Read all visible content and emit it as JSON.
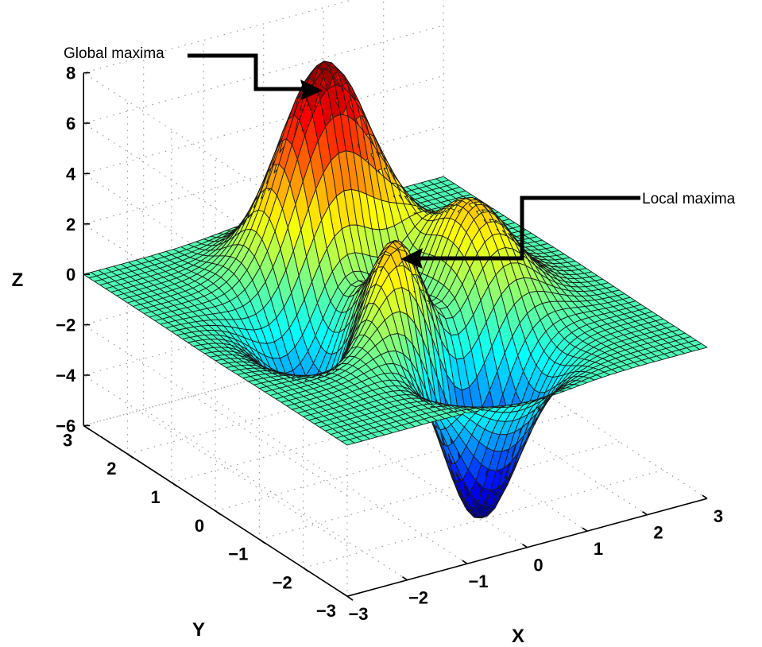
{
  "chart_data": {
    "type": "surface",
    "function": "peaks",
    "x": {
      "label": "X",
      "range": [
        -3,
        3
      ],
      "ticks": [
        "-3",
        "-2",
        "-1",
        "0",
        "1",
        "2",
        "3"
      ]
    },
    "y": {
      "label": "Y",
      "range": [
        -3,
        3
      ],
      "ticks": [
        "-3",
        "-2",
        "-1",
        "0",
        "1",
        "2",
        "3"
      ]
    },
    "z": {
      "label": "Z",
      "range": [
        -6,
        8
      ],
      "ticks": [
        "-6",
        "-4",
        "-2",
        "0",
        "2",
        "4",
        "6",
        "8"
      ]
    },
    "grid": true,
    "colormap": "jet",
    "annotations": [
      {
        "text": "Global maxima",
        "x": -0.0093,
        "y": 1.5814,
        "z": 8.1
      },
      {
        "text": "Local maxima",
        "x": -0.4,
        "y": -0.65,
        "z": 3.8
      }
    ]
  }
}
